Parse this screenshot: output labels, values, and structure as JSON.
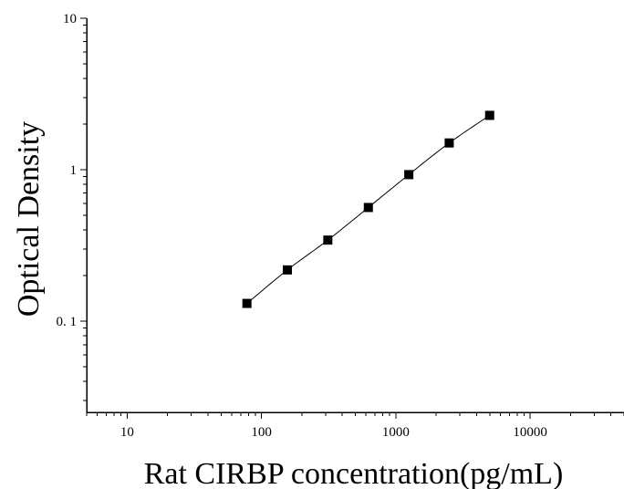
{
  "chart_data": {
    "type": "scatter",
    "xlabel": "Rat CIRBP concentration(pg/mL)",
    "ylabel": "Optical Density",
    "x_scale": "log",
    "y_scale": "log",
    "xlim": [
      5,
      50000
    ],
    "ylim": [
      0.025,
      10
    ],
    "x_ticks": [
      10,
      100,
      1000,
      10000
    ],
    "x_tick_labels": [
      "10",
      "100",
      "1000",
      "10000"
    ],
    "y_ticks": [
      0.1,
      1,
      10
    ],
    "y_tick_labels": [
      "0. 1",
      "1",
      "10"
    ],
    "grid": false,
    "legend": "none",
    "series": [
      {
        "marker": "square",
        "color": "#000000",
        "fit_line": true,
        "x": [
          78,
          156,
          312,
          625,
          1250,
          2500,
          5000
        ],
        "y": [
          0.131,
          0.218,
          0.343,
          0.563,
          0.928,
          1.502,
          2.285
        ]
      }
    ]
  }
}
